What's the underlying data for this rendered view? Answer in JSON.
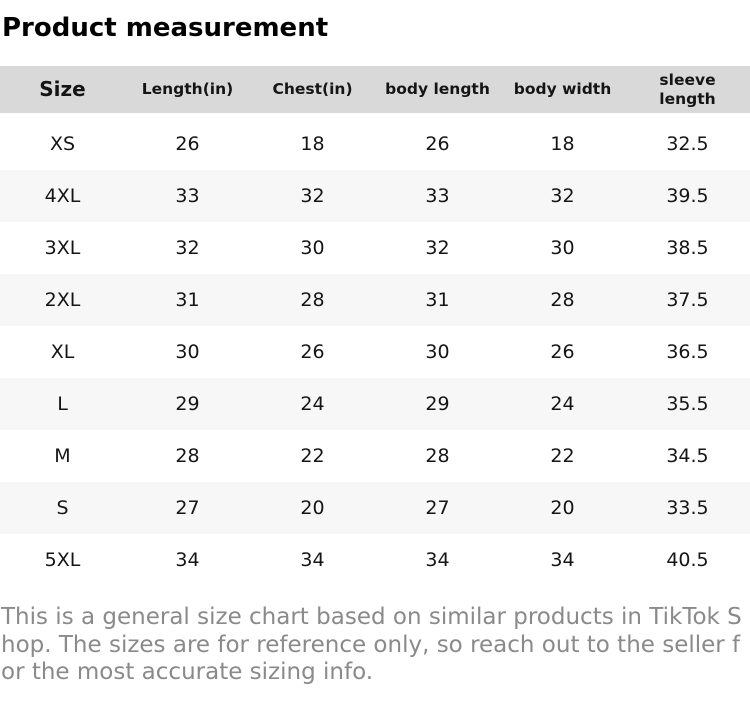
{
  "page": {
    "title": "Product measurement"
  },
  "size_table": {
    "columns": [
      "Size",
      "Length(in)",
      "Chest(in)",
      "body length",
      "body width",
      "sleeve length"
    ],
    "rows": [
      [
        "XS",
        "26",
        "18",
        "26",
        "18",
        "32.5"
      ],
      [
        "4XL",
        "33",
        "32",
        "33",
        "32",
        "39.5"
      ],
      [
        "3XL",
        "32",
        "30",
        "32",
        "30",
        "38.5"
      ],
      [
        "2XL",
        "31",
        "28",
        "31",
        "28",
        "37.5"
      ],
      [
        "XL",
        "30",
        "26",
        "30",
        "26",
        "36.5"
      ],
      [
        "L",
        "29",
        "24",
        "29",
        "24",
        "35.5"
      ],
      [
        "M",
        "28",
        "22",
        "28",
        "22",
        "34.5"
      ],
      [
        "S",
        "27",
        "20",
        "27",
        "20",
        "33.5"
      ],
      [
        "5XL",
        "34",
        "34",
        "34",
        "34",
        "40.5"
      ]
    ]
  },
  "footer": {
    "note": "This is a general size chart based on similar products in TikTok Shop. The sizes are for reference only, so reach out to the seller for the most accurate sizing info."
  },
  "colors": {
    "header_bg": "#d9d9d9",
    "alt_row_bg": "#f7f7f7",
    "title_text": "#000000",
    "body_text": "#151515",
    "note_text": "#8a8a8a"
  }
}
